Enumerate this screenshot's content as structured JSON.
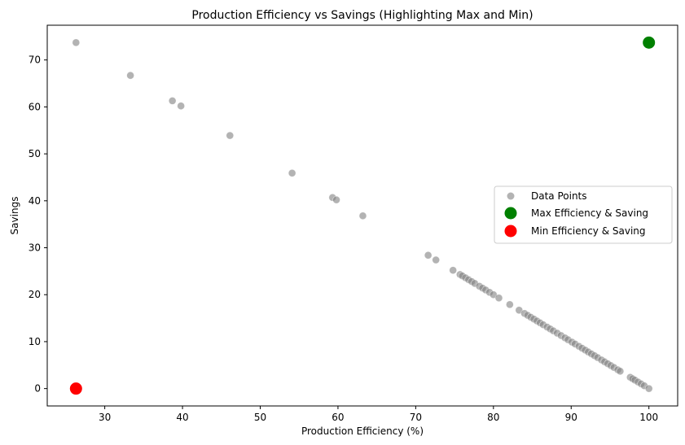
{
  "chart_data": {
    "type": "scatter",
    "title": "Production Efficiency vs Savings (Highlighting Max and Min)",
    "xlabel": "Production Efficiency (%)",
    "ylabel": "Savings",
    "xlim": [
      22.6,
      103.7
    ],
    "ylim": [
      -3.7,
      77.4
    ],
    "xticks": [
      30,
      40,
      50,
      60,
      70,
      80,
      90,
      100
    ],
    "yticks": [
      0,
      10,
      20,
      30,
      40,
      50,
      60,
      70
    ],
    "grid": false,
    "legend_position": "center-right",
    "series": [
      {
        "name": "Data Points",
        "color": "#808080",
        "points": [
          [
            26.3,
            73.7
          ],
          [
            33.3,
            66.7
          ],
          [
            38.7,
            61.3
          ],
          [
            39.8,
            60.2
          ],
          [
            46.1,
            53.9
          ],
          [
            54.1,
            45.9
          ],
          [
            59.3,
            40.7
          ],
          [
            59.8,
            40.2
          ],
          [
            63.2,
            36.8
          ],
          [
            71.6,
            28.4
          ],
          [
            72.6,
            27.4
          ],
          [
            74.8,
            25.2
          ],
          [
            75.7,
            24.3
          ],
          [
            76.0,
            24.0
          ],
          [
            76.4,
            23.6
          ],
          [
            76.8,
            23.2
          ],
          [
            77.2,
            22.8
          ],
          [
            77.6,
            22.4
          ],
          [
            78.2,
            21.8
          ],
          [
            78.6,
            21.4
          ],
          [
            79.0,
            21.0
          ],
          [
            79.5,
            20.5
          ],
          [
            80.0,
            20.0
          ],
          [
            80.7,
            19.3
          ],
          [
            82.1,
            17.9
          ],
          [
            83.3,
            16.7
          ],
          [
            84.0,
            16.0
          ],
          [
            84.4,
            15.6
          ],
          [
            84.8,
            15.2
          ],
          [
            85.2,
            14.8
          ],
          [
            85.6,
            14.4
          ],
          [
            86.0,
            14.0
          ],
          [
            86.4,
            13.6
          ],
          [
            86.9,
            13.1
          ],
          [
            87.3,
            12.7
          ],
          [
            87.7,
            12.3
          ],
          [
            88.2,
            11.8
          ],
          [
            88.7,
            11.3
          ],
          [
            89.2,
            10.8
          ],
          [
            89.6,
            10.4
          ],
          [
            90.1,
            9.9
          ],
          [
            90.5,
            9.5
          ],
          [
            91.0,
            9.0
          ],
          [
            91.4,
            8.6
          ],
          [
            91.8,
            8.2
          ],
          [
            92.2,
            7.8
          ],
          [
            92.6,
            7.4
          ],
          [
            93.0,
            7.0
          ],
          [
            93.4,
            6.6
          ],
          [
            93.9,
            6.1
          ],
          [
            94.3,
            5.7
          ],
          [
            94.7,
            5.3
          ],
          [
            95.1,
            4.9
          ],
          [
            95.5,
            4.5
          ],
          [
            96.0,
            4.0
          ],
          [
            96.3,
            3.7
          ],
          [
            97.6,
            2.4
          ],
          [
            97.9,
            2.1
          ],
          [
            98.2,
            1.8
          ],
          [
            98.6,
            1.4
          ],
          [
            99.0,
            1.0
          ],
          [
            99.4,
            0.6
          ],
          [
            100.0,
            0.0
          ]
        ]
      },
      {
        "name": "Max Efficiency & Saving",
        "color": "#008000",
        "points": [
          [
            100.0,
            73.7
          ]
        ]
      },
      {
        "name": "Min Efficiency & Saving",
        "color": "#ff0000",
        "points": [
          [
            26.3,
            0.0
          ]
        ]
      }
    ]
  }
}
